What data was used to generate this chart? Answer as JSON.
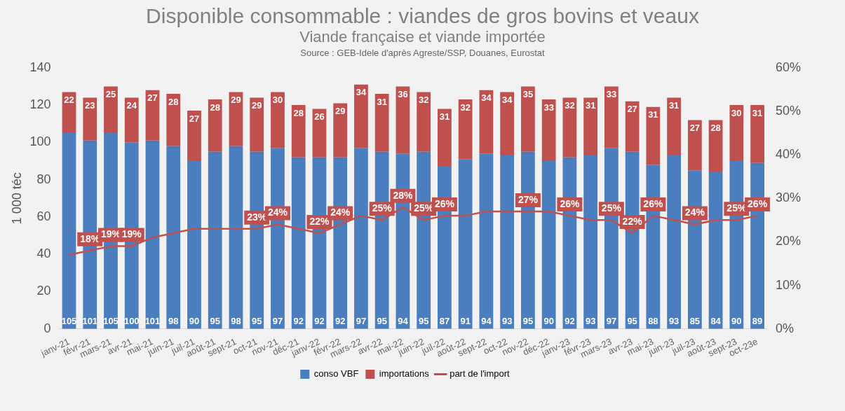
{
  "chart_data": {
    "type": "bar",
    "title": "Disponible consommable : viandes de gros bovins et veaux",
    "subtitle": "Viande française et viande importée",
    "annotations": [
      "Source : GEB-Idele d'après Agreste/SSP, Douanes, Eurostat"
    ],
    "ylabel": "1 000 téc",
    "categories": [
      "janv-21",
      "févr-21",
      "mars-21",
      "avr-21",
      "mai-21",
      "juin-21",
      "juil-21",
      "août-21",
      "sept-21",
      "oct-21",
      "nov-21",
      "déc-21",
      "janv-22",
      "févr-22",
      "mars-22",
      "avr-22",
      "mai-22",
      "juin-22",
      "juil-22",
      "août-22",
      "sept-22",
      "oct-22",
      "nov-22",
      "déc-22",
      "janv-23",
      "févr-23",
      "mars-23",
      "avr-23",
      "mai-23",
      "juin-23",
      "juil-23",
      "août-23",
      "sept-23",
      "oct-23e"
    ],
    "stacked": true,
    "data_labels": true,
    "legend": "bottom",
    "grid": false,
    "marker": "none",
    "line_style": "solid",
    "series": [
      {
        "name": "conso VBF",
        "color": "#4a7ebf",
        "values": [
          105,
          101,
          105,
          100,
          101,
          98,
          90,
          95,
          98,
          95,
          97,
          92,
          92,
          92,
          97,
          95,
          94,
          95,
          87,
          91,
          94,
          93,
          95,
          90,
          92,
          93,
          97,
          95,
          88,
          93,
          85,
          84,
          90,
          89
        ]
      },
      {
        "name": "importations",
        "color": "#c0504d",
        "values": [
          22,
          23,
          25,
          24,
          27,
          28,
          27,
          28,
          29,
          29,
          30,
          28,
          26,
          29,
          34,
          31,
          36,
          32,
          31,
          32,
          34,
          34,
          35,
          33,
          32,
          31,
          33,
          27,
          31,
          31,
          27,
          28,
          30,
          31
        ]
      },
      {
        "name": "part de l'import",
        "type": "line",
        "axis": "y2",
        "color": "#c0504d",
        "values": [
          17,
          18,
          19,
          19,
          21,
          22,
          23,
          23,
          23,
          23,
          24,
          23,
          22,
          24,
          26,
          25,
          28,
          25,
          26,
          26,
          27,
          27,
          27,
          27,
          26,
          25,
          25,
          22,
          26,
          25,
          24,
          25,
          25,
          26
        ],
        "value_labels": [
          null,
          "18%",
          "19%",
          "19%",
          null,
          null,
          null,
          null,
          null,
          "23%",
          "24%",
          null,
          "22%",
          "24%",
          null,
          "25%",
          "28%",
          "25%",
          "26%",
          null,
          null,
          null,
          "27%",
          null,
          "26%",
          null,
          "25%",
          "22%",
          "26%",
          null,
          "24%",
          null,
          "25%",
          "26%"
        ]
      }
    ],
    "ylim": [
      0,
      140
    ],
    "yticks": [
      0,
      20,
      40,
      60,
      80,
      100,
      120,
      140
    ],
    "y2lim": [
      0,
      60
    ],
    "y2ticks": [
      {
        "value": 0,
        "label": "0%"
      },
      {
        "value": 10,
        "label": "10%"
      },
      {
        "value": 20,
        "label": "20%"
      },
      {
        "value": 30,
        "label": "30%"
      },
      {
        "value": 40,
        "label": "40%"
      },
      {
        "value": 50,
        "label": "50%"
      },
      {
        "value": 60,
        "label": "60%"
      }
    ]
  }
}
